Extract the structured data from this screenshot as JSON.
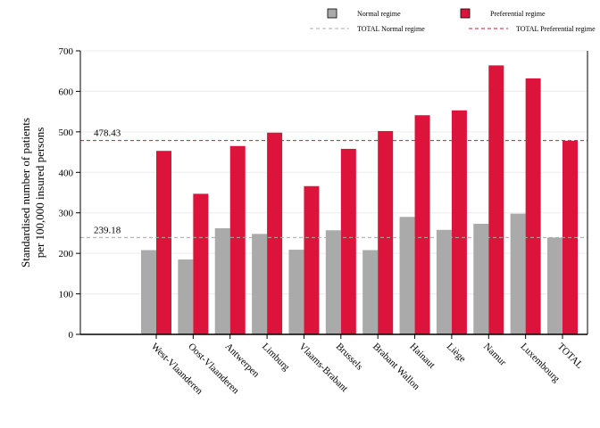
{
  "chart_data": {
    "type": "bar",
    "ylabel": [
      "Standardised number of patients",
      "per 100,000 insured persons"
    ],
    "xlabel": "",
    "ylim": [
      0,
      700
    ],
    "yticks": [
      0,
      100,
      200,
      300,
      400,
      500,
      600,
      700
    ],
    "grid": "horizontal",
    "legend_position": "top-right",
    "categories": [
      "West-Vlaanderen",
      "Oost-Vlaanderen",
      "Antwerpen",
      "Limburg",
      "Vlaams-Brabant",
      "Brussels",
      "Brabant Wallon",
      "Hainaut",
      "Liège",
      "Namur",
      "Luxembourg",
      "TOTAL"
    ],
    "series": [
      {
        "name": "Normal regime",
        "color": "#aaaaaa",
        "values": [
          208,
          185,
          262,
          248,
          209,
          257,
          208,
          290,
          258,
          273,
          298,
          239
        ]
      },
      {
        "name": "Preferential regime",
        "color": "#dc143c",
        "values": [
          453,
          347,
          465,
          498,
          366,
          458,
          502,
          541,
          553,
          664,
          632,
          478
        ]
      }
    ],
    "reference_lines": [
      {
        "name": "TOTAL Normal regime",
        "value": 239.18,
        "label": "239.18",
        "color": "#aaaaaa"
      },
      {
        "name": "TOTAL Preferential regime",
        "value": 478.43,
        "label": "478.43",
        "color": "#dc143c"
      }
    ]
  }
}
